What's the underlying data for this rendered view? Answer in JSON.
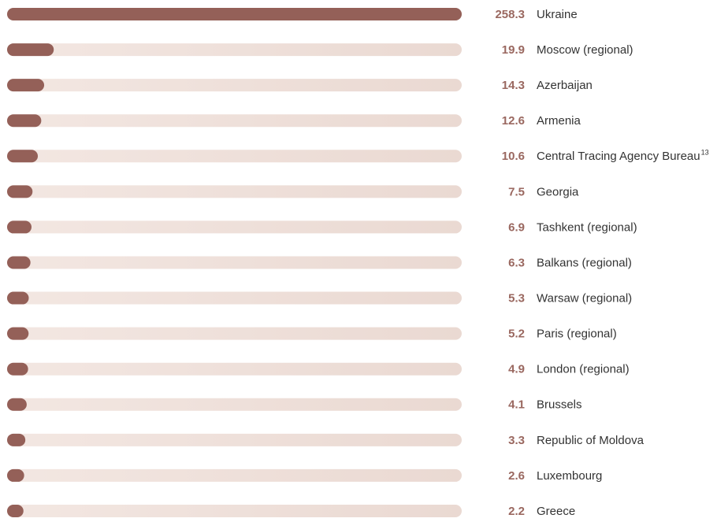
{
  "chart_data": {
    "type": "bar",
    "orientation": "horizontal",
    "categories": [
      "Ukraine",
      "Moscow (regional)",
      "Azerbaijan",
      "Armenia",
      "Central Tracing Agency Bureau",
      "Georgia",
      "Tashkent (regional)",
      "Balkans (regional)",
      "Warsaw (regional)",
      "Paris (regional)",
      "London (regional)",
      "Brussels",
      "Republic of Moldova",
      "Luxembourg",
      "Greece"
    ],
    "footnote_marks": [
      null,
      null,
      null,
      null,
      "13",
      null,
      null,
      null,
      null,
      null,
      null,
      null,
      null,
      null,
      null
    ],
    "values": [
      258.3,
      19.9,
      14.3,
      12.6,
      10.6,
      7.5,
      6.9,
      6.3,
      5.3,
      5.2,
      4.9,
      4.1,
      3.3,
      2.6,
      2.2
    ],
    "color": "#946058",
    "track_color": "#eee0da"
  }
}
